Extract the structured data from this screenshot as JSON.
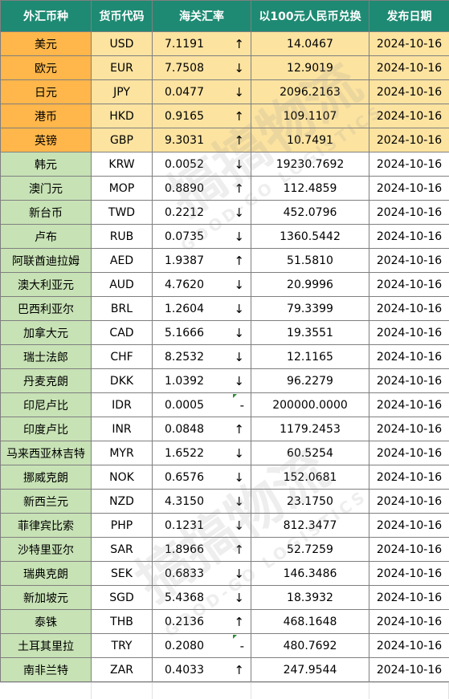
{
  "headers": [
    "外汇币种",
    "货币代码",
    "海关汇率",
    "以100元人民币兑换",
    "发布日期"
  ],
  "rows": [
    {
      "name": "美元",
      "code": "USD",
      "rate": "7.1191",
      "trend": "↑",
      "amount": "14.0467",
      "date": "2024-10-16",
      "group": "major"
    },
    {
      "name": "欧元",
      "code": "EUR",
      "rate": "7.7508",
      "trend": "↓",
      "amount": "12.9019",
      "date": "2024-10-16",
      "group": "major"
    },
    {
      "name": "日元",
      "code": "JPY",
      "rate": "0.0477",
      "trend": "↓",
      "amount": "2096.2163",
      "date": "2024-10-16",
      "group": "major"
    },
    {
      "name": "港币",
      "code": "HKD",
      "rate": "0.9165",
      "trend": "↑",
      "amount": "109.1107",
      "date": "2024-10-16",
      "group": "major"
    },
    {
      "name": "英镑",
      "code": "GBP",
      "rate": "9.3031",
      "trend": "↑",
      "amount": "10.7491",
      "date": "2024-10-16",
      "group": "major"
    },
    {
      "name": "韩元",
      "code": "KRW",
      "rate": "0.0052",
      "trend": "↓",
      "amount": "19230.7692",
      "date": "2024-10-16",
      "group": "minor"
    },
    {
      "name": "澳门元",
      "code": "MOP",
      "rate": "0.8890",
      "trend": "↑",
      "amount": "112.4859",
      "date": "2024-10-16",
      "group": "minor"
    },
    {
      "name": "新台币",
      "code": "TWD",
      "rate": "0.2212",
      "trend": "↓",
      "amount": "452.0796",
      "date": "2024-10-16",
      "group": "minor"
    },
    {
      "name": "卢布",
      "code": "RUB",
      "rate": "0.0735",
      "trend": "↓",
      "amount": "1360.5442",
      "date": "2024-10-16",
      "group": "minor"
    },
    {
      "name": "阿联酋迪拉姆",
      "code": "AED",
      "rate": "1.9387",
      "trend": "↑",
      "amount": "51.5810",
      "date": "2024-10-16",
      "group": "minor"
    },
    {
      "name": "澳大利亚元",
      "code": "AUD",
      "rate": "4.7620",
      "trend": "↓",
      "amount": "20.9996",
      "date": "2024-10-16",
      "group": "minor"
    },
    {
      "name": "巴西利亚尔",
      "code": "BRL",
      "rate": "1.2604",
      "trend": "↓",
      "amount": "79.3399",
      "date": "2024-10-16",
      "group": "minor"
    },
    {
      "name": "加拿大元",
      "code": "CAD",
      "rate": "5.1666",
      "trend": "↓",
      "amount": "19.3551",
      "date": "2024-10-16",
      "group": "minor"
    },
    {
      "name": "瑞士法郎",
      "code": "CHF",
      "rate": "8.2532",
      "trend": "↓",
      "amount": "12.1165",
      "date": "2024-10-16",
      "group": "minor"
    },
    {
      "name": "丹麦克朗",
      "code": "DKK",
      "rate": "1.0392",
      "trend": "↓",
      "amount": "96.2279",
      "date": "2024-10-16",
      "group": "minor"
    },
    {
      "name": "印尼卢比",
      "code": "IDR",
      "rate": "0.0005",
      "trend": "-",
      "amount": "200000.0000",
      "date": "2024-10-16",
      "group": "minor"
    },
    {
      "name": "印度卢比",
      "code": "INR",
      "rate": "0.0848",
      "trend": "↑",
      "amount": "1179.2453",
      "date": "2024-10-16",
      "group": "minor"
    },
    {
      "name": "马来西亚林吉特",
      "code": "MYR",
      "rate": "1.6522",
      "trend": "↓",
      "amount": "60.5254",
      "date": "2024-10-16",
      "group": "minor"
    },
    {
      "name": "挪威克朗",
      "code": "NOK",
      "rate": "0.6576",
      "trend": "↓",
      "amount": "152.0681",
      "date": "2024-10-16",
      "group": "minor"
    },
    {
      "name": "新西兰元",
      "code": "NZD",
      "rate": "4.3150",
      "trend": "↓",
      "amount": "23.1750",
      "date": "2024-10-16",
      "group": "minor"
    },
    {
      "name": "菲律宾比索",
      "code": "PHP",
      "rate": "0.1231",
      "trend": "↓",
      "amount": "812.3477",
      "date": "2024-10-16",
      "group": "minor"
    },
    {
      "name": "沙特里亚尔",
      "code": "SAR",
      "rate": "1.8966",
      "trend": "↑",
      "amount": "52.7259",
      "date": "2024-10-16",
      "group": "minor"
    },
    {
      "name": "瑞典克朗",
      "code": "SEK",
      "rate": "0.6833",
      "trend": "↓",
      "amount": "146.3486",
      "date": "2024-10-16",
      "group": "minor"
    },
    {
      "name": "新加坡元",
      "code": "SGD",
      "rate": "5.4368",
      "trend": "↓",
      "amount": "18.3932",
      "date": "2024-10-16",
      "group": "minor"
    },
    {
      "name": "泰铢",
      "code": "THB",
      "rate": "0.2136",
      "trend": "↑",
      "amount": "468.1648",
      "date": "2024-10-16",
      "group": "minor"
    },
    {
      "name": "土耳其里拉",
      "code": "TRY",
      "rate": "0.2080",
      "trend": "-",
      "amount": "480.7692",
      "date": "2024-10-16",
      "group": "minor"
    },
    {
      "name": "南非兰特",
      "code": "ZAR",
      "rate": "0.4033",
      "trend": "↑",
      "amount": "247.9544",
      "date": "2024-10-16",
      "group": "minor"
    }
  ],
  "watermark": {
    "text": "搞搞物流",
    "subtext": "GOOD-GO LOGISTICS"
  },
  "colors": {
    "header_bg": "#1e8a73",
    "major_name_bg": "#ffb64a",
    "major_row_bg": "#fce3a0",
    "minor_name_bg": "#c7e2b5"
  }
}
